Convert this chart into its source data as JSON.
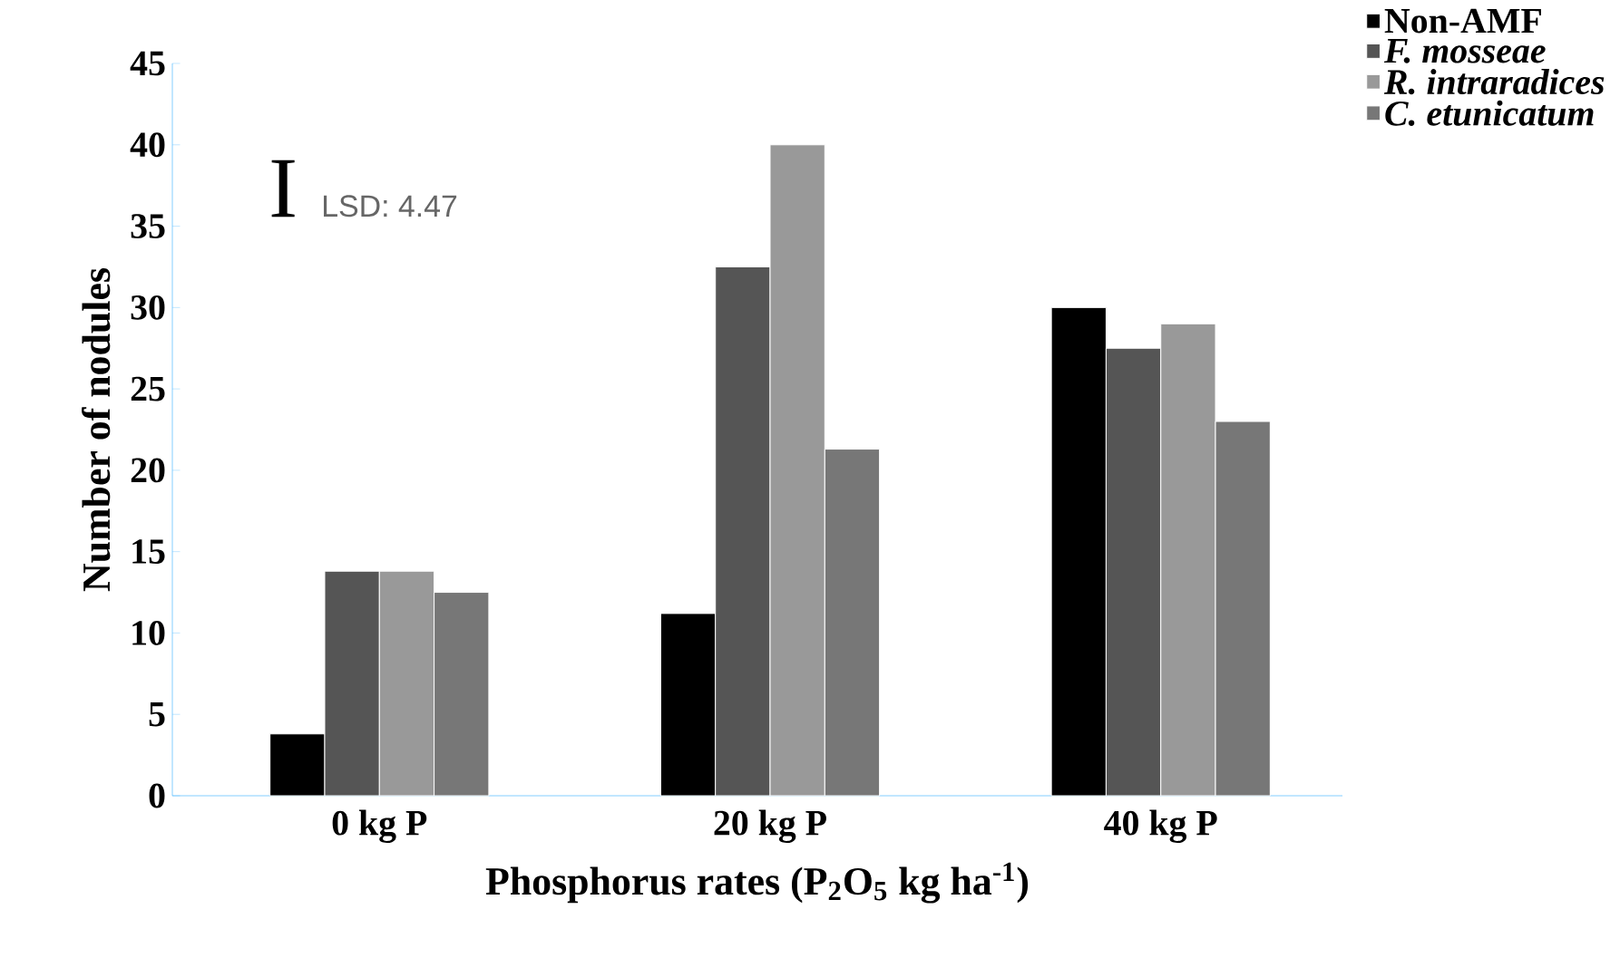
{
  "chart_data": {
    "type": "bar",
    "categories": [
      "0 kg P",
      "20 kg P",
      "40 kg P"
    ],
    "series": [
      {
        "name": "Non-AMF",
        "color": "#000000",
        "values": [
          3.8,
          11.2,
          30
        ]
      },
      {
        "name": "F. mosseae",
        "color": "#555555",
        "values": [
          13.8,
          32.5,
          27.5
        ]
      },
      {
        "name": "R. intraradices",
        "color": "#999999",
        "values": [
          13.8,
          40,
          29
        ]
      },
      {
        "name": "C. etunicatum",
        "color": "#777777",
        "values": [
          12.5,
          21.3,
          23
        ]
      }
    ],
    "xlabel": "Phosphorus rates (P$_{2}$O$_{5}$ kg ha$^{-1}$)",
    "ylabel": "Number of nodules",
    "ylim": [
      0,
      45
    ],
    "yticks": [
      0,
      5,
      10,
      15,
      20,
      25,
      30,
      35,
      40,
      45
    ],
    "annotations": [
      "I",
      "LSD: 4.47"
    ],
    "grid": false,
    "legend": "top right"
  }
}
